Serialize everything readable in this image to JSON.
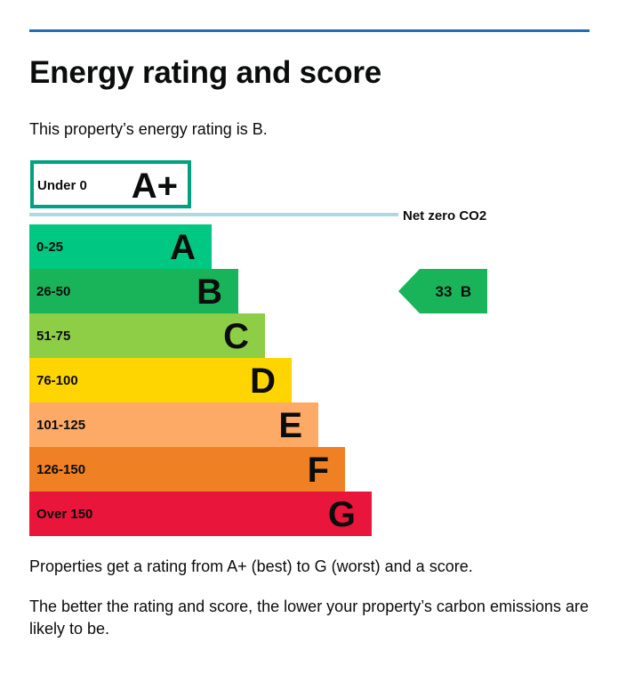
{
  "page": {
    "title": "Energy rating and score",
    "intro": "This property’s energy rating is B.",
    "paragraph_1": "Properties get a rating from A+ (best) to G (worst) and a score.",
    "paragraph_2": "The better the rating and score, the lower your property’s carbon emissions are likely to be."
  },
  "chart_data": {
    "type": "bar",
    "title": "",
    "top_band": {
      "range": "Under 0",
      "letter": "A+",
      "color": "#00a080"
    },
    "net_zero_label": "Net zero CO2",
    "bands": [
      {
        "range": "0-25",
        "letter": "A",
        "color": "#00c781"
      },
      {
        "range": "26-50",
        "letter": "B",
        "color": "#19b459"
      },
      {
        "range": "51-75",
        "letter": "C",
        "color": "#8dce46"
      },
      {
        "range": "76-100",
        "letter": "D",
        "color": "#ffd500"
      },
      {
        "range": "101-125",
        "letter": "E",
        "color": "#fcaa65"
      },
      {
        "range": "126-150",
        "letter": "F",
        "color": "#ef8023"
      },
      {
        "range": "Over 150",
        "letter": "G",
        "color": "#e9153b"
      }
    ],
    "current": {
      "score": 33,
      "letter": "B",
      "color": "#19b459"
    }
  }
}
